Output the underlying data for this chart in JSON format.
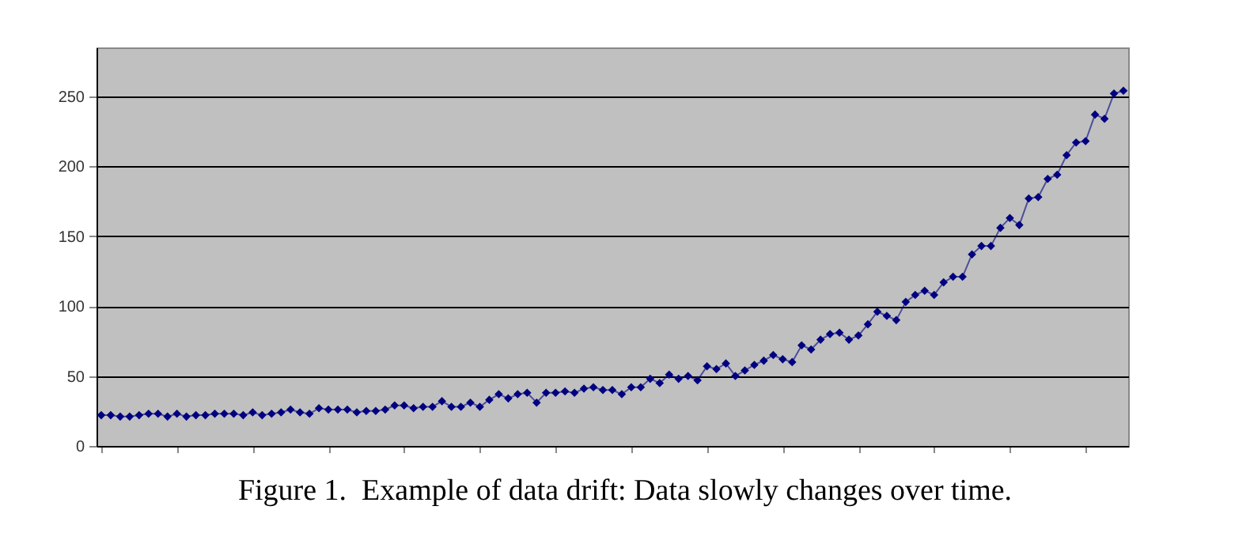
{
  "chart_data": {
    "type": "line",
    "categories": [
      null,
      null,
      null,
      null,
      null,
      null,
      null,
      null,
      null,
      null,
      null,
      null,
      null,
      null,
      null,
      null,
      null,
      null,
      null,
      null,
      null,
      null,
      null,
      null,
      null,
      null,
      null,
      null,
      null,
      null,
      null,
      null,
      null,
      null,
      null,
      null,
      null,
      null,
      null,
      null,
      null,
      null,
      null,
      null,
      null,
      null,
      null,
      null,
      null,
      null,
      null,
      null,
      null,
      null,
      null,
      null,
      null,
      null,
      null,
      null,
      null,
      null,
      null,
      null,
      null,
      null,
      null,
      null,
      null,
      null,
      null,
      null,
      null,
      null,
      null,
      null,
      null,
      null,
      null,
      null,
      null,
      null,
      null,
      null,
      null,
      null,
      null,
      null,
      null,
      null,
      null,
      null,
      null,
      null,
      null,
      null,
      null,
      null,
      null,
      null,
      null,
      null,
      null,
      null,
      null,
      null,
      null,
      null,
      null
    ],
    "series": [
      {
        "color": "#000080",
        "values": [
          22,
          22,
          21,
          21,
          22,
          23,
          23,
          21,
          23,
          21,
          22,
          22,
          23,
          23,
          23,
          22,
          24,
          22,
          23,
          24,
          26,
          24,
          23,
          27,
          26,
          26,
          26,
          24,
          25,
          25,
          26,
          29,
          29,
          27,
          28,
          28,
          32,
          28,
          28,
          31,
          28,
          33,
          37,
          34,
          37,
          38,
          31,
          38,
          38,
          39,
          38,
          41,
          42,
          40,
          40,
          37,
          42,
          42,
          48,
          45,
          51,
          48,
          50,
          47,
          57,
          55,
          59,
          50,
          54,
          58,
          61,
          65,
          62,
          60,
          72,
          69,
          76,
          80,
          81,
          76,
          79,
          87,
          96,
          93,
          90,
          103,
          108,
          111,
          108,
          117,
          121,
          121,
          137,
          143,
          143,
          156,
          163,
          158,
          177,
          178,
          191,
          194,
          208,
          217,
          218,
          237,
          234,
          252,
          254
        ]
      }
    ],
    "ylim": [
      0,
      285
    ],
    "yticks": [
      0,
      50,
      100,
      150,
      200,
      250
    ],
    "grid": "y",
    "marker": "diamond",
    "line_style": "solid",
    "annotations": [
      "Figure 1.  Example of data drift: Data slowly changes over time."
    ]
  }
}
